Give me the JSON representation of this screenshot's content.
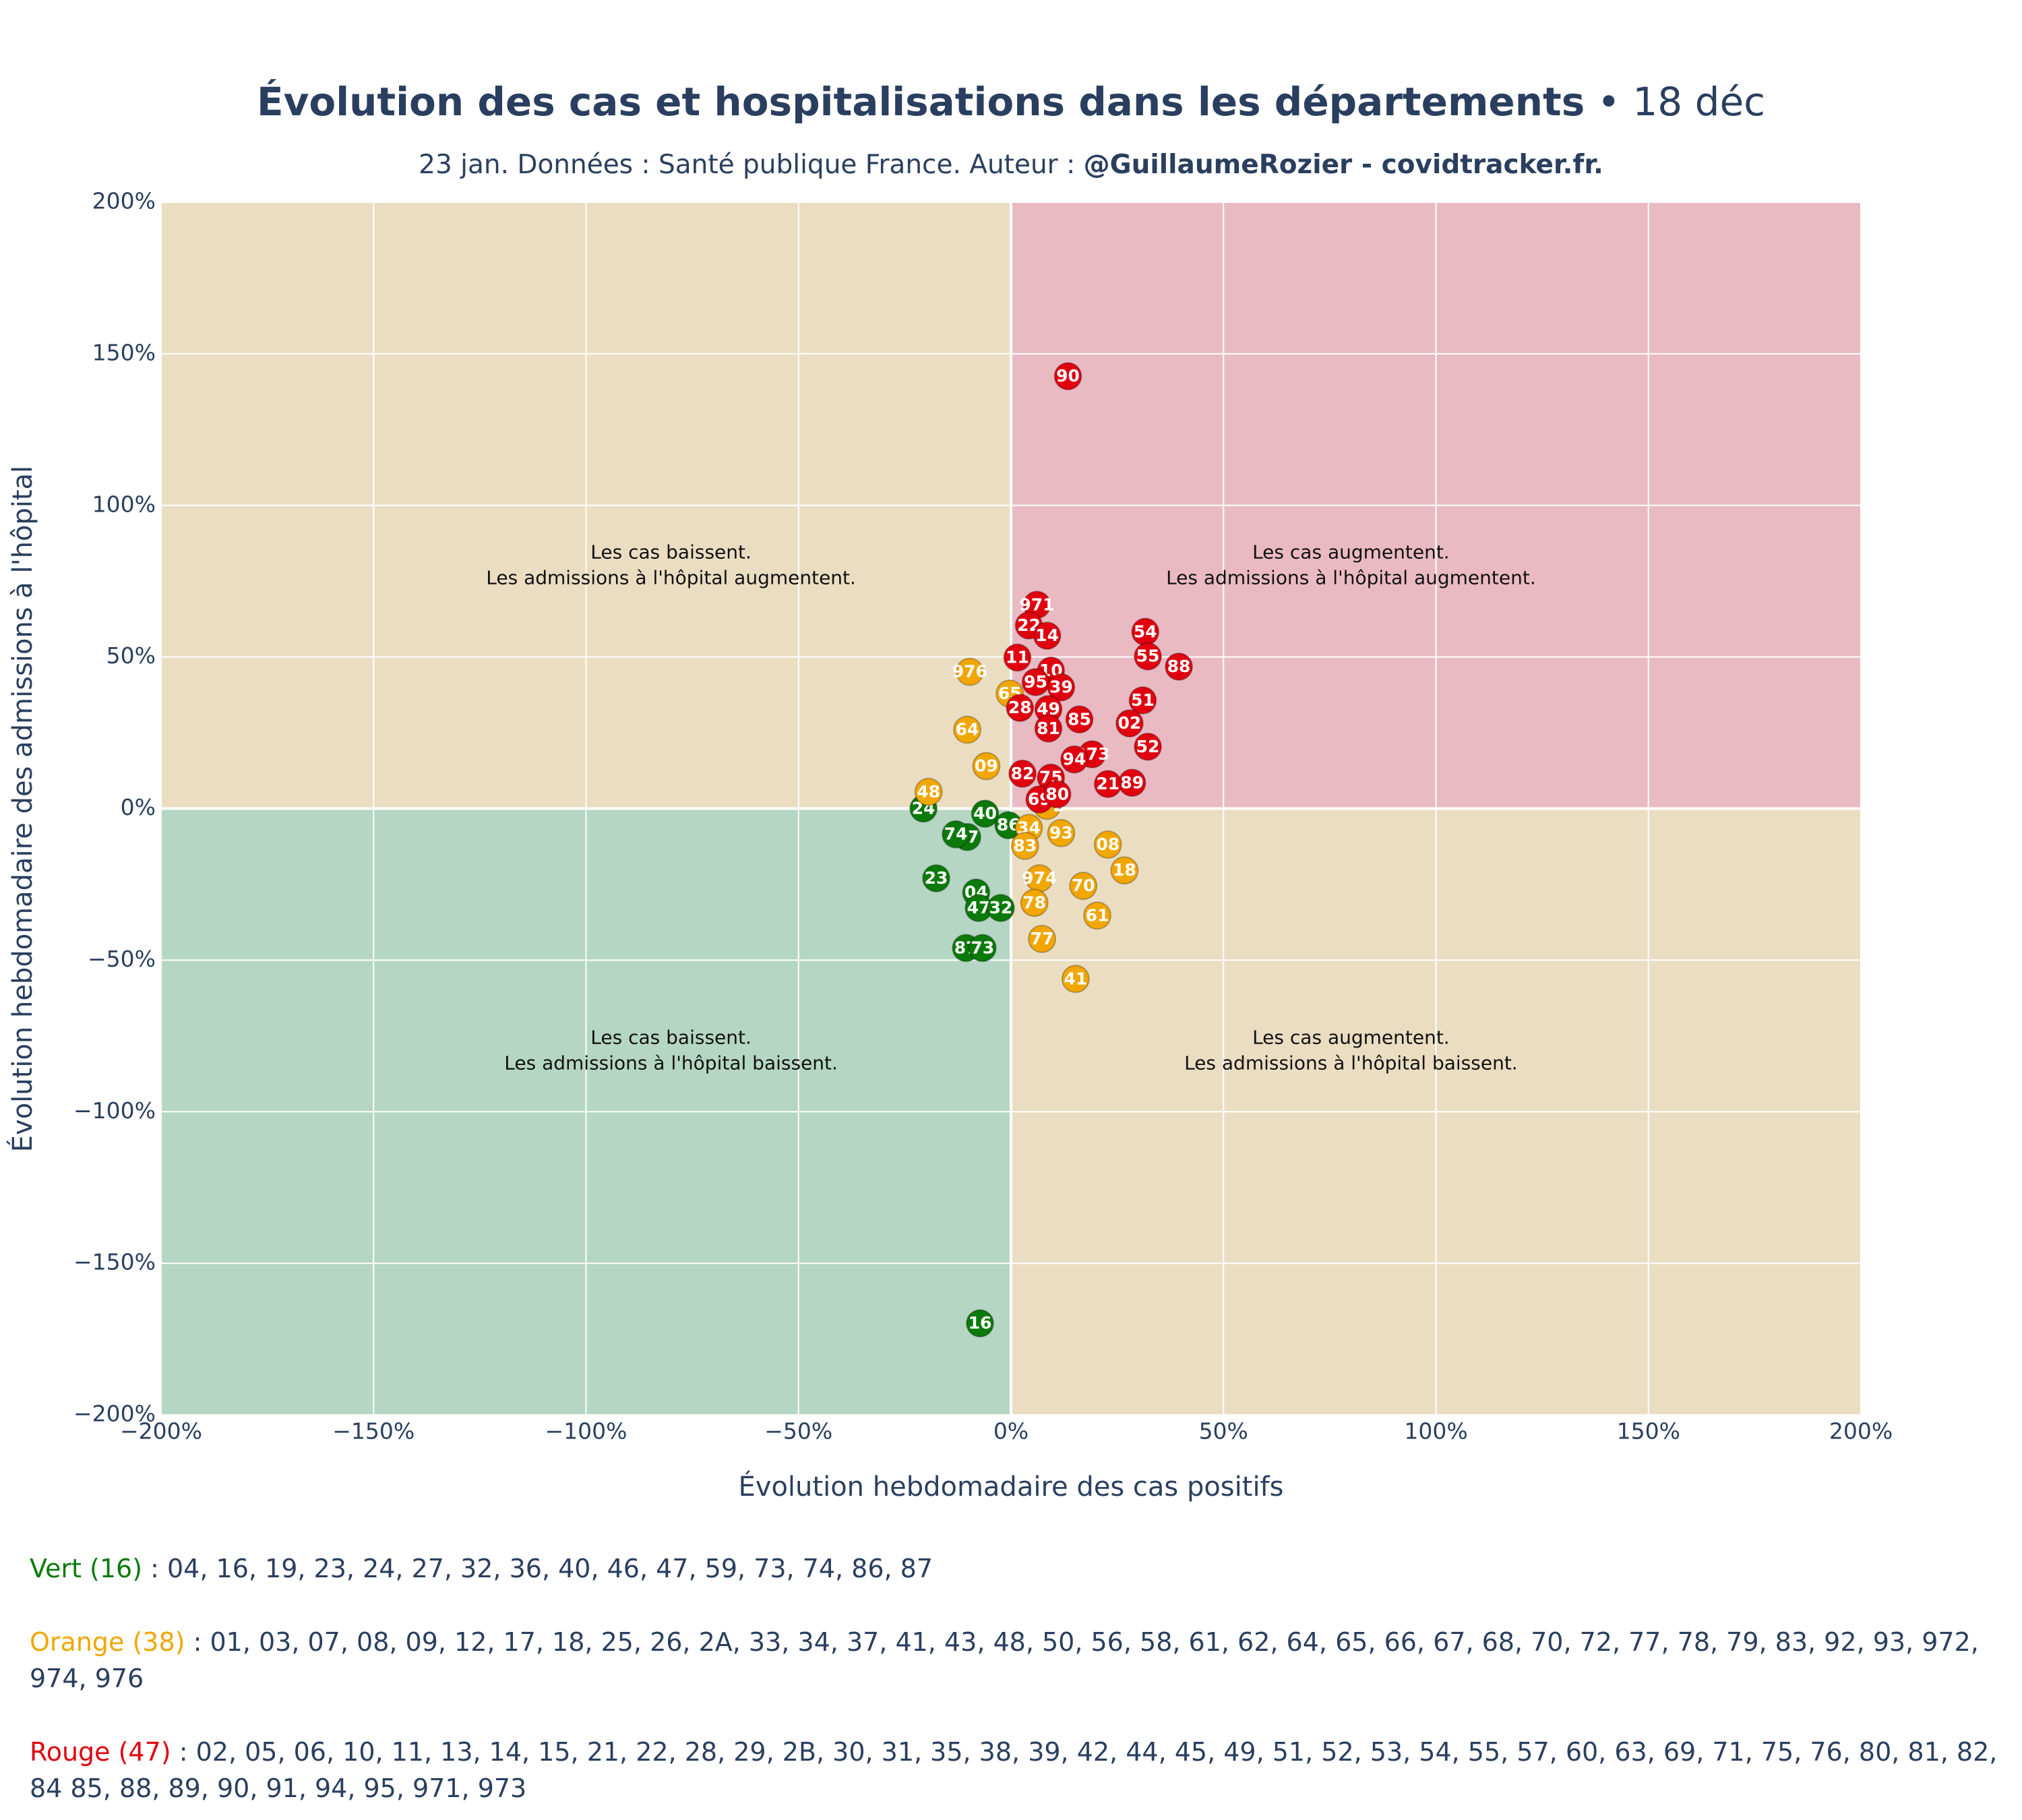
{
  "chart_data": {
    "type": "scatter",
    "title": "Évolution des cas et hospitalisations dans les départements",
    "title_suffix": "• 18 déc",
    "subtitle": "23 jan. Données : Santé publique France. Auteur :",
    "subtitle_bold": "@GuillaumeRozier - covidtracker.fr.",
    "x_label": "Évolution hebdomadaire des cas positifs",
    "y_label": "Évolution hebdomadaire des admissions à l'hôpital",
    "xlim": [
      -200,
      200
    ],
    "ylim": [
      -200,
      200
    ],
    "xticks": [
      {
        "value": -200,
        "label": "−200%"
      },
      {
        "value": -150,
        "label": "−150%"
      },
      {
        "value": -100,
        "label": "−100%"
      },
      {
        "value": -50,
        "label": "−50%"
      },
      {
        "value": 0,
        "label": "0%"
      },
      {
        "value": 50,
        "label": "50%"
      },
      {
        "value": 100,
        "label": "100%"
      },
      {
        "value": 150,
        "label": "150%"
      },
      {
        "value": 200,
        "label": "200%"
      }
    ],
    "yticks": [
      {
        "value": -200,
        "label": "−200%"
      },
      {
        "value": -150,
        "label": "−150%"
      },
      {
        "value": -100,
        "label": "−100%"
      },
      {
        "value": -50,
        "label": "−50%"
      },
      {
        "value": 0,
        "label": "0%"
      },
      {
        "value": 50,
        "label": "50%"
      },
      {
        "value": 100,
        "label": "100%"
      },
      {
        "value": 150,
        "label": "150%"
      },
      {
        "value": 200,
        "label": "200%"
      }
    ],
    "grid": true,
    "quadrants": [
      {
        "lines": [
          "Les cas baissent.",
          "Les admissions à l'hôpital augmentent."
        ],
        "color": "#eaddc2"
      },
      {
        "lines": [
          "Les cas augmentent.",
          "Les admissions à l'hôpital augmentent."
        ],
        "color": "#eabac3"
      },
      {
        "lines": [
          "Les cas baissent.",
          "Les admissions à l'hôpital baissent."
        ],
        "color": "#b5d6c3"
      },
      {
        "lines": [
          "Les cas augmentent.",
          "Les admissions à l'hôpital baissent."
        ],
        "color": "#eaddc2"
      }
    ],
    "series": [
      {
        "name": "Vert (16)",
        "color": "#0b7a0b",
        "list": ": 04, 16, 19, 23, 24, 27, 32, 36, 40, 46, 47, 59, 73, 74, 86, 87",
        "labels": [
          "40",
          "86",
          "27",
          "74",
          "23",
          "04",
          "47",
          "32",
          "87",
          "73",
          "16",
          "24"
        ],
        "x": [
          -6.1,
          -0.6,
          -10.3,
          -13.0,
          -17.6,
          -8.2,
          -7.6,
          -2.4,
          -10.6,
          -6.7,
          -7.3,
          -20.6
        ],
        "y": [
          -1.7,
          -5.5,
          -9.4,
          -8.5,
          -23.0,
          -27.7,
          -32.8,
          -32.8,
          -46.0,
          -46.0,
          -169.8,
          0.0
        ]
      },
      {
        "name": "Orange (38)",
        "color": "#f2a600",
        "list": ": 01, 03, 07, 08, 09, 12, 17, 18, 25, 26, 2A, 33, 34, 37, 41, 43, 48, 50, 56, 58, 61, 62, 64, 65, 66, 67, 68, 70, 72, 77, 78, 79, 83, 92, 93, 972, 974, 976",
        "labels": [
          "976",
          "65",
          "64",
          "09",
          "48",
          "972",
          "34",
          "93",
          "83",
          "08",
          "18",
          "70",
          "974",
          "78",
          "61",
          "77",
          "41"
        ],
        "x": [
          -9.7,
          -0.3,
          -10.3,
          -5.8,
          -19.4,
          8.5,
          4.2,
          11.8,
          3.3,
          22.8,
          26.7,
          17.0,
          6.7,
          5.5,
          20.3,
          7.3,
          15.2
        ],
        "y": [
          45.1,
          37.9,
          26.0,
          14.0,
          5.5,
          0.9,
          -6.4,
          -8.1,
          -12.3,
          -11.9,
          -20.4,
          -25.5,
          -23.0,
          -31.1,
          -35.3,
          -43.0,
          -56.2
        ]
      },
      {
        "name": "Rouge (47)",
        "color": "#e0000f",
        "list": ": 02, 05, 06, 10, 11, 13, 14, 15, 21, 22, 28, 29, 2B, 30, 31, 35, 38, 39, 42, 44, 45, 49, 51, 52, 53, 54, 55, 57, 60, 63, 69, 71, 75, 76, 80, 81, 82, 84 85, 88, 89, 90, 91, 94, 95, 971, 973",
        "labels": [
          "90",
          "971",
          "22",
          "14",
          "54",
          "55",
          "88",
          "11",
          "10",
          "95",
          "39",
          "51",
          "28",
          "49",
          "85",
          "02",
          "81",
          "52",
          "973",
          "94",
          "82",
          "75",
          "89",
          "21",
          "69",
          "80"
        ],
        "x": [
          13.4,
          6.1,
          4.2,
          8.5,
          31.6,
          32.2,
          39.5,
          1.5,
          9.4,
          5.8,
          11.8,
          31.0,
          2.1,
          8.8,
          16.1,
          27.9,
          8.8,
          32.2,
          19.1,
          14.9,
          2.7,
          9.4,
          28.5,
          22.8,
          6.7,
          10.9
        ],
        "y": [
          142.6,
          67.2,
          60.4,
          57.0,
          58.3,
          50.2,
          46.8,
          49.8,
          45.5,
          41.7,
          40.0,
          35.7,
          33.2,
          32.8,
          29.4,
          28.1,
          26.4,
          20.4,
          17.9,
          16.2,
          11.5,
          10.2,
          8.5,
          8.1,
          3.0,
          4.7
        ]
      }
    ]
  }
}
